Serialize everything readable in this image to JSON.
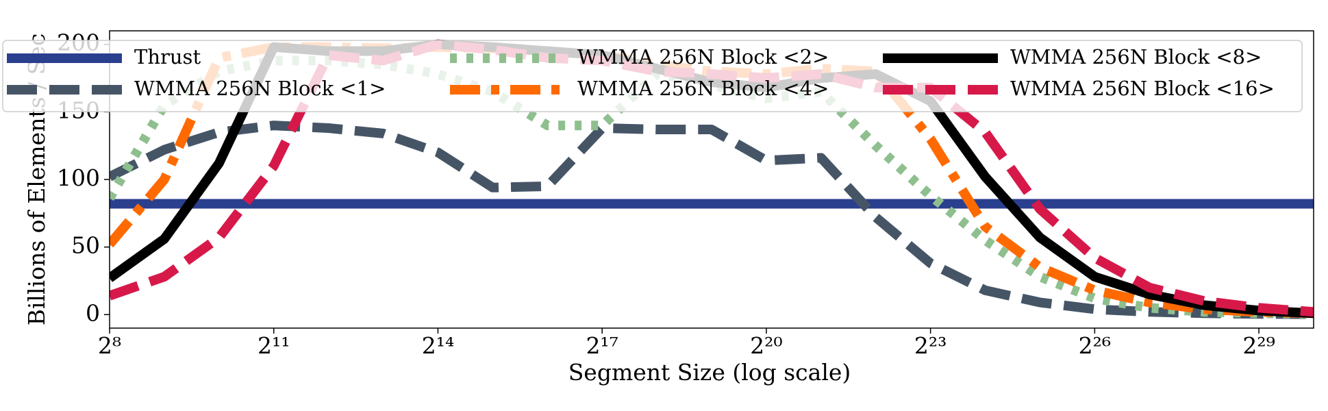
{
  "chart_data": {
    "type": "line",
    "xlabel": "Segment Size (log scale)",
    "ylabel": "Billions of Elements / Sec",
    "xscale": "log2",
    "x": [
      256,
      512,
      1024,
      2048,
      4096,
      8192,
      16384,
      32768,
      65536,
      131072,
      262144,
      524288,
      1048576,
      2097152,
      4194304,
      8388608,
      16777216,
      33554432,
      67108864,
      134217728,
      268435456,
      536870912,
      1073741824
    ],
    "xlim": [
      256,
      1073741824
    ],
    "xticks": [
      {
        "value": 256,
        "label": "2⁸"
      },
      {
        "value": 2048,
        "label": "2¹¹"
      },
      {
        "value": 16384,
        "label": "2¹⁴"
      },
      {
        "value": 131072,
        "label": "2¹⁷"
      },
      {
        "value": 1048576,
        "label": "2²⁰"
      },
      {
        "value": 8388608,
        "label": "2²³"
      },
      {
        "value": 67108864,
        "label": "2²⁶"
      },
      {
        "value": 536870912,
        "label": "2²⁹"
      }
    ],
    "ylim": [
      -10,
      210
    ],
    "yticks": [
      0,
      50,
      100,
      150,
      200
    ],
    "legend": "top",
    "series": [
      {
        "name": "Thrust",
        "color": "#2b3f8f",
        "dash": "solid",
        "values": [
          82,
          82,
          82,
          82,
          82,
          82,
          82,
          82,
          82,
          82,
          82,
          82,
          82,
          82,
          82,
          82,
          82,
          82,
          82,
          82,
          82,
          82,
          82
        ]
      },
      {
        "name": "WMMA 256N Block <1>",
        "color": "#465566",
        "dash": "dashed",
        "values": [
          102,
          122,
          135,
          140,
          138,
          134,
          120,
          94,
          95,
          138,
          137,
          137,
          114,
          116,
          72,
          38,
          18,
          9,
          4,
          2,
          1,
          0.5,
          0.3
        ]
      },
      {
        "name": "WMMA 256N Block <2>",
        "color": "#8fbf8f",
        "dash": "dotted",
        "values": [
          86,
          155,
          180,
          188,
          188,
          185,
          178,
          165,
          140,
          140,
          178,
          170,
          160,
          165,
          125,
          88,
          55,
          28,
          12,
          5,
          2,
          1,
          0.5
        ]
      },
      {
        "name": "WMMA 256N Block <4>",
        "color": "#ff6a00",
        "dash": "dashdot",
        "values": [
          52,
          100,
          190,
          198,
          198,
          197,
          198,
          197,
          195,
          192,
          185,
          180,
          178,
          182,
          180,
          130,
          65,
          35,
          18,
          9,
          4,
          2,
          1
        ]
      },
      {
        "name": "WMMA 256N Block <8>",
        "color": "#000000",
        "dash": "solid",
        "values": [
          27,
          56,
          112,
          198,
          195,
          195,
          200,
          198,
          195,
          192,
          182,
          172,
          168,
          175,
          178,
          158,
          102,
          57,
          28,
          15,
          7,
          3,
          1
        ]
      },
      {
        "name": "WMMA 256N Block <16>",
        "color": "#d7194a",
        "dash": "dashed",
        "values": [
          14,
          28,
          57,
          110,
          192,
          188,
          200,
          196,
          190,
          188,
          180,
          178,
          175,
          178,
          168,
          168,
          135,
          78,
          42,
          20,
          10,
          5,
          2
        ]
      }
    ]
  }
}
